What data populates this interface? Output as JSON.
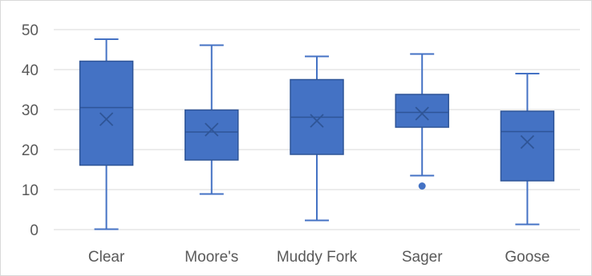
{
  "chart_data": {
    "type": "boxplot",
    "title": "",
    "xlabel": "",
    "ylabel": "",
    "ylim": [
      0,
      50
    ],
    "y_ticks": [
      0,
      10,
      20,
      30,
      40,
      50
    ],
    "grid": true,
    "legend": "none",
    "colors": {
      "box_fill": "#4472c4",
      "box_stroke": "#2f5597",
      "grid": "#d9d9d9",
      "text": "#595959"
    },
    "categories": [
      "Clear",
      "Moore's",
      "Muddy Fork",
      "Sager",
      "Goose"
    ],
    "boxes": [
      {
        "min": 0.1,
        "q1": 16.1,
        "median": 30.5,
        "q3": 42.1,
        "max": 47.6,
        "mean": 27.6,
        "outliers": []
      },
      {
        "min": 8.9,
        "q1": 17.4,
        "median": 24.4,
        "q3": 29.9,
        "max": 46.1,
        "mean": 25.0,
        "outliers": []
      },
      {
        "min": 2.3,
        "q1": 18.8,
        "median": 28.1,
        "q3": 37.5,
        "max": 43.3,
        "mean": 27.2,
        "outliers": []
      },
      {
        "min": 13.5,
        "q1": 25.6,
        "median": 29.3,
        "q3": 33.8,
        "max": 43.9,
        "mean": 29.0,
        "outliers": [
          10.9
        ]
      },
      {
        "min": 1.3,
        "q1": 12.2,
        "median": 24.5,
        "q3": 29.6,
        "max": 39.0,
        "mean": 21.9,
        "outliers": []
      }
    ]
  }
}
